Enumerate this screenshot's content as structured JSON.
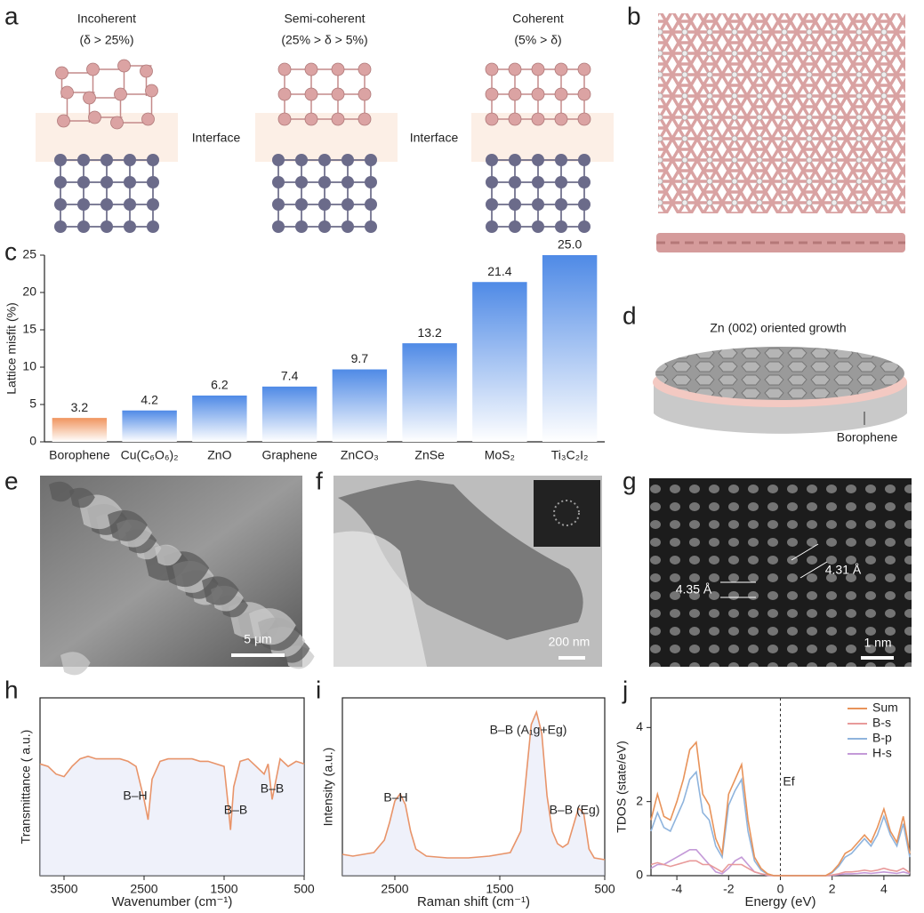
{
  "panel_letters": [
    "a",
    "b",
    "c",
    "d",
    "e",
    "f",
    "g",
    "h",
    "i",
    "j"
  ],
  "panel_a": {
    "columns": [
      {
        "title": "Incoherent",
        "condition": "(δ > 25%)"
      },
      {
        "title": "Semi-coherent",
        "condition": "(25% > δ > 5%)"
      },
      {
        "title": "Coherent",
        "condition": "(5% > δ)"
      }
    ],
    "interface_labels": [
      "Interface",
      "Interface"
    ]
  },
  "panel_d": {
    "title": "Zn (002) oriented growth",
    "label": "Borophene"
  },
  "panel_e": {
    "scale_bar": "5 μm"
  },
  "panel_f": {
    "scale_bar": "200 nm"
  },
  "panel_g": {
    "spacings": [
      "4.35 Å",
      "4.31 Å"
    ],
    "scale_bar": "1 nm"
  },
  "chart_data": [
    {
      "type": "bar",
      "ylabel": "Lattice misfit (%)",
      "categories": [
        "Borophene",
        "Cu(C₆O₆)₂",
        "ZnO",
        "Graphene",
        "ZnCO₃",
        "ZnSe",
        "MoS₂",
        "Ti₃C₂I₂"
      ],
      "values": [
        3.2,
        4.2,
        6.2,
        7.4,
        9.7,
        13.2,
        21.4,
        25.0
      ],
      "value_labels": [
        "3.2",
        "4.2",
        "6.2",
        "7.4",
        "9.7",
        "13.2",
        "21.4",
        "25.0"
      ],
      "colors": [
        "#f0955f",
        "#4f8ae6",
        "#4f8ae6",
        "#4f8ae6",
        "#4f8ae6",
        "#4f8ae6",
        "#4f8ae6",
        "#4f8ae6"
      ],
      "ylim": [
        0,
        25
      ],
      "yticks": [
        0,
        5,
        10,
        15,
        20,
        25
      ]
    },
    {
      "type": "line",
      "xlabel": "Wavenumber (cm⁻¹)",
      "ylabel": "Transmittance ( a.u.)",
      "x": [
        3800,
        3700,
        3600,
        3500,
        3400,
        3300,
        3200,
        3100,
        3000,
        2900,
        2800,
        2700,
        2600,
        2500,
        2450,
        2400,
        2300,
        2200,
        2100,
        2000,
        1900,
        1800,
        1700,
        1600,
        1500,
        1450,
        1420,
        1380,
        1300,
        1200,
        1100,
        1000,
        950,
        900,
        850,
        800,
        700,
        600,
        500
      ],
      "values": [
        7.4,
        7.3,
        7.0,
        6.9,
        7.3,
        7.6,
        7.7,
        7.6,
        7.6,
        7.6,
        7.6,
        7.5,
        7.3,
        6.0,
        5.2,
        6.8,
        7.5,
        7.6,
        7.6,
        7.6,
        7.6,
        7.5,
        7.5,
        7.4,
        7.3,
        5.8,
        4.8,
        6.5,
        7.5,
        7.6,
        7.3,
        7.0,
        7.4,
        6.0,
        6.8,
        7.6,
        7.3,
        7.5,
        7.4
      ],
      "color": "#e8946a",
      "xlim": [
        3800,
        500
      ],
      "xticks": [
        3500,
        2500,
        1500,
        500
      ],
      "ylim": [
        3,
        10
      ],
      "annotations": [
        "B–H",
        "B–B",
        "B–B"
      ]
    },
    {
      "type": "line",
      "xlabel": "Raman shift (cm⁻¹)",
      "ylabel": "Intensity (a.u.)",
      "x": [
        3000,
        2900,
        2800,
        2700,
        2600,
        2550,
        2500,
        2450,
        2400,
        2350,
        2300,
        2200,
        2000,
        1800,
        1600,
        1400,
        1300,
        1250,
        1200,
        1150,
        1100,
        1050,
        1000,
        950,
        900,
        850,
        800,
        750,
        700,
        650,
        600,
        500
      ],
      "values": [
        1.2,
        1.1,
        1.2,
        1.3,
        2.0,
        3.0,
        4.2,
        4.6,
        4.0,
        2.5,
        1.5,
        1.1,
        1.0,
        1.0,
        1.1,
        1.3,
        2.5,
        5.5,
        8.5,
        9.2,
        8.0,
        4.5,
        2.5,
        1.8,
        1.6,
        1.8,
        2.8,
        3.8,
        3.5,
        1.5,
        1.0,
        0.9
      ],
      "color": "#e8946a",
      "xlim": [
        3000,
        500
      ],
      "xticks": [
        2500,
        1500,
        500
      ],
      "ylim": [
        0,
        10
      ],
      "annotations": [
        "B–H",
        "B–B (A₁g+Eg)",
        "B–B (Eg)"
      ]
    },
    {
      "type": "line",
      "xlabel": "Energy (eV)",
      "ylabel": "TDOS (state/eV)",
      "x": [
        -5,
        -4.75,
        -4.5,
        -4.25,
        -4,
        -3.75,
        -3.5,
        -3.25,
        -3,
        -2.75,
        -2.5,
        -2.25,
        -2,
        -1.75,
        -1.5,
        -1.25,
        -1,
        -0.75,
        -0.5,
        -0.25,
        0,
        0.25,
        0.5,
        0.75,
        1,
        1.25,
        1.5,
        1.75,
        2,
        2.25,
        2.5,
        2.75,
        3,
        3.25,
        3.5,
        3.75,
        4,
        4.25,
        4.5,
        4.75,
        5
      ],
      "series": [
        {
          "name": "Sum",
          "color": "#e8935a",
          "values": [
            1.5,
            2.2,
            1.6,
            1.5,
            2.0,
            2.6,
            3.4,
            3.6,
            2.2,
            1.9,
            1.0,
            0.6,
            2.2,
            2.6,
            3.0,
            1.5,
            0.5,
            0.2,
            0.05,
            0,
            0,
            0,
            0,
            0,
            0,
            0,
            0,
            0,
            0.1,
            0.3,
            0.6,
            0.7,
            0.9,
            1.1,
            0.9,
            1.3,
            1.8,
            1.2,
            0.9,
            1.6,
            0.6
          ]
        },
        {
          "name": "B-s",
          "color": "#e89a9a",
          "values": [
            0.3,
            0.35,
            0.3,
            0.25,
            0.3,
            0.35,
            0.4,
            0.4,
            0.3,
            0.3,
            0.2,
            0.1,
            0.3,
            0.3,
            0.3,
            0.2,
            0.1,
            0.05,
            0.02,
            0,
            0,
            0,
            0,
            0,
            0,
            0,
            0,
            0,
            0.02,
            0.05,
            0.1,
            0.1,
            0.12,
            0.15,
            0.12,
            0.15,
            0.2,
            0.15,
            0.12,
            0.2,
            0.08
          ]
        },
        {
          "name": "B-p",
          "color": "#8fb4dd",
          "values": [
            1.2,
            1.7,
            1.3,
            1.2,
            1.6,
            2.0,
            2.6,
            2.8,
            1.7,
            1.5,
            0.8,
            0.5,
            1.9,
            2.3,
            2.6,
            1.2,
            0.4,
            0.15,
            0.04,
            0,
            0,
            0,
            0,
            0,
            0,
            0,
            0,
            0,
            0.08,
            0.25,
            0.5,
            0.6,
            0.8,
            1.0,
            0.8,
            1.1,
            1.6,
            1.1,
            0.8,
            1.4,
            0.5
          ]
        },
        {
          "name": "H-s",
          "color": "#c49ad8",
          "values": [
            0.2,
            0.3,
            0.3,
            0.4,
            0.5,
            0.6,
            0.7,
            0.7,
            0.5,
            0.3,
            0.1,
            0.05,
            0.2,
            0.4,
            0.5,
            0.3,
            0.1,
            0.05,
            0.01,
            0,
            0,
            0,
            0,
            0,
            0,
            0,
            0,
            0,
            0.01,
            0.03,
            0.05,
            0.05,
            0.06,
            0.08,
            0.06,
            0.08,
            0.1,
            0.08,
            0.06,
            0.1,
            0.05
          ]
        }
      ],
      "xlim": [
        -5,
        5
      ],
      "xticks": [
        -4,
        -2,
        0,
        2,
        4
      ],
      "ylim": [
        0,
        4.8
      ],
      "yticks": [
        0,
        2,
        4
      ],
      "annotations": [
        "Ef"
      ]
    }
  ]
}
